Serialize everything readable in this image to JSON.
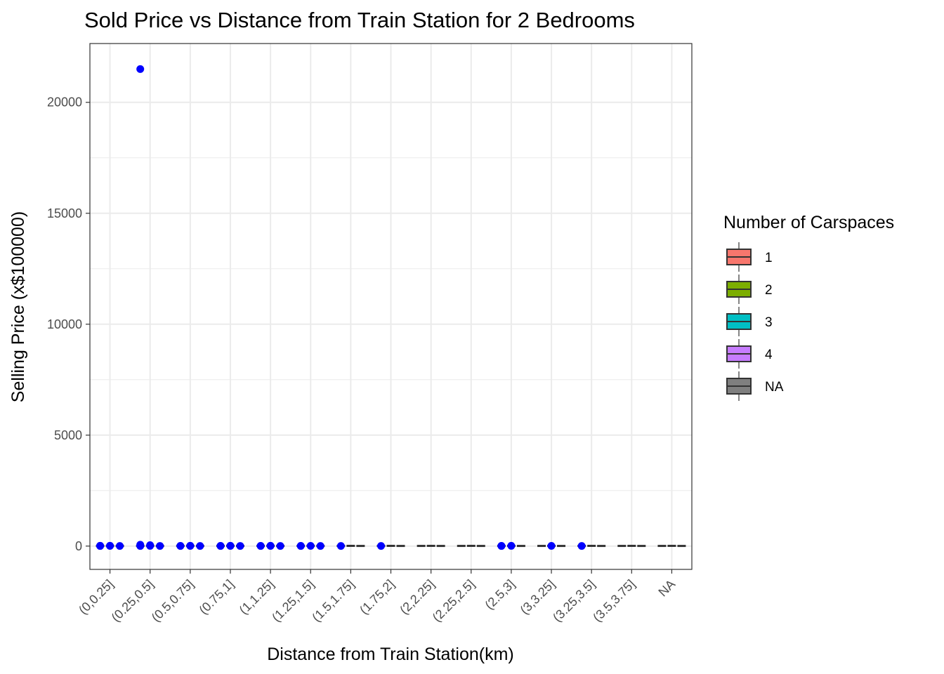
{
  "chart_data": {
    "type": "box",
    "title": "Sold Price vs Distance from Train Station for 2 Bedrooms",
    "xlabel": "Distance from Train Station(km)",
    "ylabel": "Selling Price (x$100000)",
    "categories": [
      "(0,0.25]",
      "(0.25,0.5]",
      "(0.5,0.75]",
      "(0.75,1]",
      "(1,1.25]",
      "(1.25,1.5]",
      "(1.5,1.75]",
      "(1.75,2]",
      "(2,2.25]",
      "(2.25,2.5]",
      "(2.5,3]",
      "(3,3.25]",
      "(3.25,3.5]",
      "(3.5,3.75]",
      "NA"
    ],
    "yticks": [
      0,
      5000,
      10000,
      15000,
      20000
    ],
    "ylim": [
      -1050,
      22650
    ],
    "grid": true,
    "legend": {
      "title": "Number of Carspaces",
      "placement": "right",
      "items": [
        {
          "label": "1",
          "color": "#F8766D"
        },
        {
          "label": "2",
          "color": "#7CAE00"
        },
        {
          "label": "3",
          "color": "#00BFC4"
        },
        {
          "label": "4",
          "color": "#C77CFF"
        },
        {
          "label": "NA",
          "color": "#7F7F7F"
        }
      ]
    },
    "point_color": "#0000FF",
    "outlier": {
      "category": "(0.25,0.5]",
      "group": "1",
      "value": 21500
    },
    "boxes": [
      {
        "category": "(0,0.25]",
        "groups": [
          {
            "group": "1",
            "median": 8,
            "points": [
              5,
              9,
              12
            ]
          },
          {
            "group": "2",
            "median": 12,
            "points": [
              10,
              14
            ]
          },
          {
            "group": "NA",
            "median": 6,
            "points": [
              6
            ]
          }
        ]
      },
      {
        "category": "(0.25,0.5]",
        "groups": [
          {
            "group": "1",
            "median": 9,
            "points": [
              7,
              11,
              21500,
              60
            ]
          },
          {
            "group": "2",
            "median": 14,
            "points": [
              12,
              40
            ]
          },
          {
            "group": "NA",
            "median": 7,
            "points": [
              8
            ]
          }
        ]
      },
      {
        "category": "(0.5,0.75]",
        "groups": [
          {
            "group": "1",
            "median": 8,
            "points": [
              6,
              10
            ]
          },
          {
            "group": "2",
            "median": 12,
            "points": [
              11,
              13
            ]
          },
          {
            "group": "NA",
            "median": 7,
            "points": [
              7
            ]
          }
        ]
      },
      {
        "category": "(0.75,1]",
        "groups": [
          {
            "group": "1",
            "median": 8,
            "points": [
              6,
              9
            ]
          },
          {
            "group": "2",
            "median": 12,
            "points": [
              11,
              14
            ]
          },
          {
            "group": "NA",
            "median": 7,
            "points": [
              8
            ]
          }
        ]
      },
      {
        "category": "(1,1.25]",
        "groups": [
          {
            "group": "1",
            "median": 8,
            "points": [
              6,
              10
            ]
          },
          {
            "group": "2",
            "median": 11,
            "points": [
              10,
              13
            ]
          },
          {
            "group": "NA",
            "median": 7,
            "points": [
              7
            ]
          }
        ]
      },
      {
        "category": "(1.25,1.5]",
        "groups": [
          {
            "group": "1",
            "median": 8,
            "points": [
              6,
              9
            ]
          },
          {
            "group": "2",
            "median": 12,
            "points": [
              11
            ]
          },
          {
            "group": "NA",
            "median": 7,
            "points": [
              7
            ]
          }
        ]
      },
      {
        "category": "(1.5,1.75]",
        "groups": [
          {
            "group": "1",
            "median": 8,
            "points": [
              7
            ]
          },
          {
            "group": "2",
            "median": 11,
            "points": []
          },
          {
            "group": "NA",
            "median": 7,
            "points": []
          }
        ]
      },
      {
        "category": "(1.75,2]",
        "groups": [
          {
            "group": "1",
            "median": 8,
            "points": [
              7
            ]
          },
          {
            "group": "2",
            "median": 11,
            "points": []
          },
          {
            "group": "NA",
            "median": 7,
            "points": []
          }
        ]
      },
      {
        "category": "(2,2.25]",
        "groups": [
          {
            "group": "1",
            "median": 8,
            "points": []
          },
          {
            "group": "2",
            "median": 11,
            "points": []
          },
          {
            "group": "NA",
            "median": 7,
            "points": []
          }
        ]
      },
      {
        "category": "(2.25,2.5]",
        "groups": [
          {
            "group": "1",
            "median": 8,
            "points": []
          },
          {
            "group": "2",
            "median": 11,
            "points": []
          },
          {
            "group": "NA",
            "median": 7,
            "points": []
          }
        ]
      },
      {
        "category": "(2.5,3]",
        "groups": [
          {
            "group": "1",
            "median": 8,
            "points": [
              7,
              10
            ]
          },
          {
            "group": "2",
            "median": 11,
            "points": [
              12
            ]
          },
          {
            "group": "NA",
            "median": 7,
            "points": []
          }
        ]
      },
      {
        "category": "(3,3.25]",
        "groups": [
          {
            "group": "1",
            "median": 8,
            "points": []
          },
          {
            "group": "2",
            "median": 11,
            "points": [
              10
            ]
          },
          {
            "group": "NA",
            "median": 7,
            "points": []
          }
        ]
      },
      {
        "category": "(3.25,3.5]",
        "groups": [
          {
            "group": "1",
            "median": 8,
            "points": [
              7
            ]
          },
          {
            "group": "2",
            "median": 11,
            "points": []
          },
          {
            "group": "NA",
            "median": 7,
            "points": []
          }
        ]
      },
      {
        "category": "(3.5,3.75]",
        "groups": [
          {
            "group": "1",
            "median": 8,
            "points": []
          },
          {
            "group": "2",
            "median": 11,
            "points": []
          },
          {
            "group": "NA",
            "median": 7,
            "points": []
          }
        ]
      },
      {
        "category": "NA",
        "groups": [
          {
            "group": "1",
            "median": 8,
            "points": []
          },
          {
            "group": "2",
            "median": 11,
            "points": []
          },
          {
            "group": "NA",
            "median": 7,
            "points": []
          }
        ]
      }
    ]
  }
}
